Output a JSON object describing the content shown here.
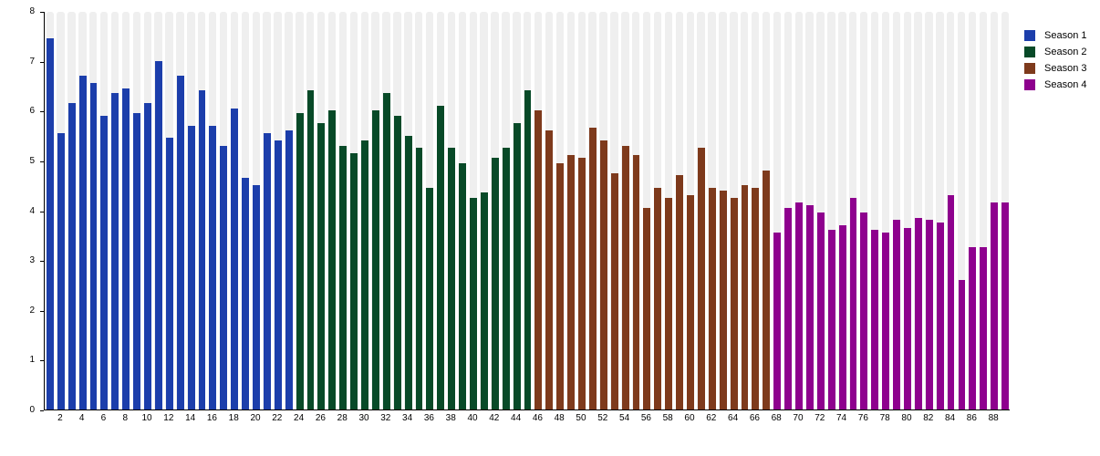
{
  "page": {
    "background": "#ffffff"
  },
  "chart_data": {
    "type": "bar",
    "title": "",
    "subtitle": "",
    "xlabel": "",
    "ylabel": "",
    "ylim": [
      0,
      8
    ],
    "ytick_labels": [
      "0",
      "1",
      "2",
      "3",
      "4",
      "5",
      "6",
      "7",
      "8"
    ],
    "x_axis": "episode number, labeled every 2 episodes from 2 to 88",
    "x_label_step": 2,
    "total_bars": 89,
    "grid": "full-height light-gray column stripe behind every bar",
    "legend_position": "top-right",
    "colors": {
      "stripe": "#efefef",
      "axis": "#000000",
      "text": "#000000"
    },
    "series": [
      {
        "name": "Season 1",
        "color": "#1C3EAB",
        "first_episode": 1,
        "values": [
          7.45,
          5.55,
          6.15,
          6.7,
          6.55,
          5.9,
          6.35,
          6.45,
          5.95,
          6.15,
          7.0,
          5.45,
          6.7,
          5.7,
          6.4,
          5.7,
          5.3,
          6.05,
          4.65,
          4.5,
          5.55,
          5.4,
          5.6
        ]
      },
      {
        "name": "Season 2",
        "color": "#084A28",
        "first_episode": 24,
        "values": [
          5.95,
          6.4,
          5.75,
          6.0,
          5.3,
          5.15,
          5.4,
          6.0,
          6.35,
          5.9,
          5.5,
          5.25,
          4.45,
          6.1,
          5.25,
          4.95,
          4.25,
          4.35,
          5.05,
          5.25,
          5.75,
          6.4
        ]
      },
      {
        "name": "Season 3",
        "color": "#7E3A1C",
        "first_episode": 46,
        "values": [
          6.0,
          5.6,
          4.95,
          5.1,
          5.05,
          5.65,
          5.4,
          4.75,
          5.3,
          5.1,
          4.05,
          4.45,
          4.25,
          4.7,
          4.3,
          5.25,
          4.45,
          4.4,
          4.25,
          4.5,
          4.45,
          4.8
        ]
      },
      {
        "name": "Season 4",
        "color": "#8E018E",
        "first_episode": 68,
        "values": [
          3.55,
          4.05,
          4.15,
          4.1,
          3.95,
          3.6,
          3.7,
          4.25,
          3.95,
          3.6,
          3.55,
          3.8,
          3.65,
          3.85,
          3.8,
          3.75,
          4.3,
          2.6,
          3.25,
          3.25,
          4.15,
          4.15
        ]
      }
    ]
  }
}
